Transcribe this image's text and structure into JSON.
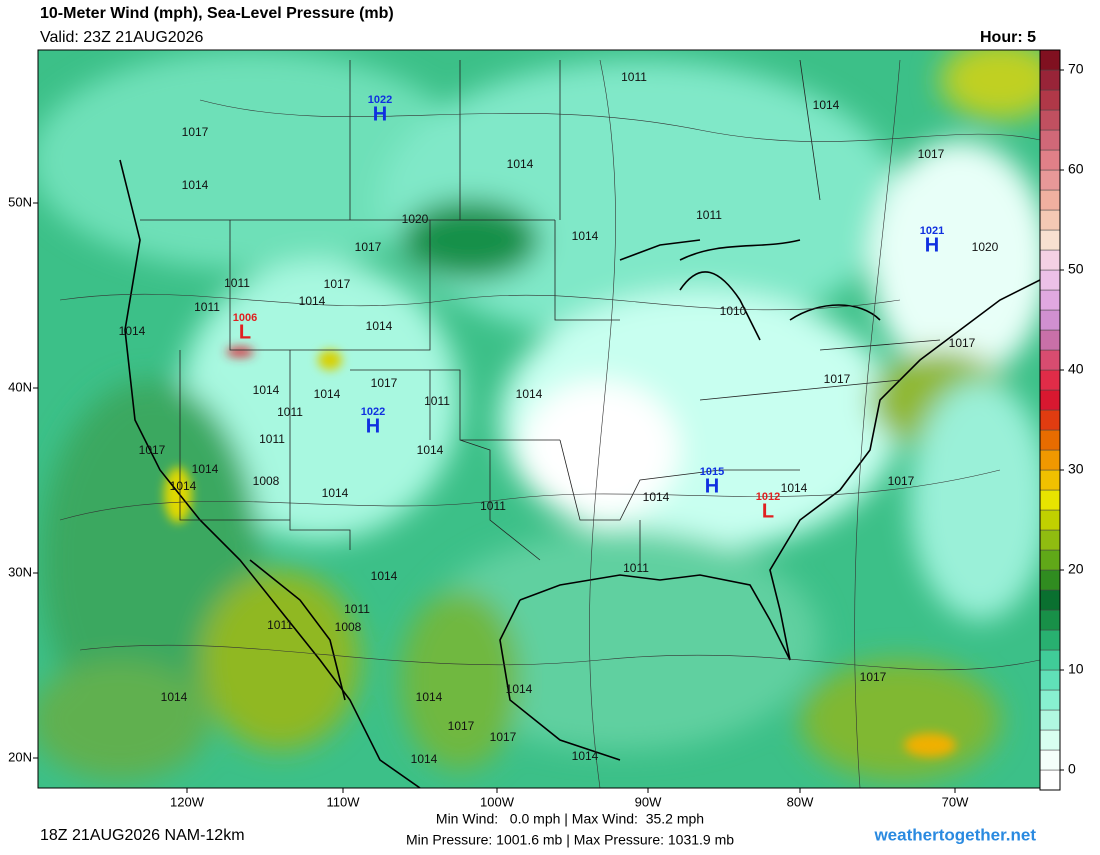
{
  "header": {
    "title": "10-Meter Wind (mph), Sea-Level Pressure (mb)",
    "valid": "Valid: 23Z 21AUG2026",
    "hour": "Hour: 5"
  },
  "map": {
    "lat_labels": [
      "50N",
      "40N",
      "30N",
      "20N"
    ],
    "lon_labels": [
      "120W",
      "110W",
      "100W",
      "90W",
      "80W",
      "70W"
    ],
    "pressure_labels": [
      "1011",
      "1014",
      "1017",
      "1017",
      "1014",
      "1014",
      "1011",
      "1020",
      "1014",
      "1017",
      "1020",
      "1011",
      "1017",
      "1014",
      "1011",
      "1010",
      "1014",
      "1014",
      "1017",
      "1017",
      "1017",
      "1014",
      "1011",
      "1014",
      "1014",
      "1011",
      "1011",
      "1014",
      "1017",
      "1014",
      "1014",
      "1008",
      "1014",
      "1014",
      "1014",
      "1017",
      "1011",
      "1014",
      "1011",
      "1011",
      "1008",
      "1011",
      "1014",
      "1014",
      "1014",
      "1017",
      "1017",
      "1014",
      "1014",
      "1017"
    ],
    "centers": [
      {
        "type": "H",
        "value": "1022"
      },
      {
        "type": "L",
        "value": "1006"
      },
      {
        "type": "H",
        "value": "1022"
      },
      {
        "type": "H",
        "value": "1021"
      },
      {
        "type": "H",
        "value": "1015"
      },
      {
        "type": "L",
        "value": "1012"
      }
    ]
  },
  "colorbar": {
    "ticks": [
      0,
      10,
      20,
      30,
      40,
      50,
      60,
      70
    ],
    "bins": [
      -2,
      0,
      2,
      4,
      6,
      8,
      10,
      12,
      14,
      16,
      18,
      20,
      22,
      24,
      26,
      28,
      30,
      32,
      34,
      36,
      38,
      40,
      42,
      44,
      46,
      48,
      50,
      52,
      54,
      56,
      58,
      60,
      62,
      64,
      66,
      68,
      70,
      72
    ],
    "colors": [
      "#ffffff",
      "#f4fffa",
      "#d8fff0",
      "#b0f8e0",
      "#88f0d0",
      "#60e0b8",
      "#40cc98",
      "#28b070",
      "#189048",
      "#0a7030",
      "#308c20",
      "#60a818",
      "#90bc10",
      "#c0d000",
      "#e8e400",
      "#f0c000",
      "#f09800",
      "#e86c00",
      "#e03c10",
      "#d81830",
      "#e02c48",
      "#d84c70",
      "#c870a8",
      "#d090d0",
      "#e0a8e0",
      "#ecc0e8",
      "#f4d0e4",
      "#f8e0d0",
      "#f4c8b4",
      "#f0b0a0",
      "#e89898",
      "#e08088",
      "#d06878",
      "#c05060",
      "#b03848",
      "#982438",
      "#801020"
    ]
  },
  "footer": {
    "run": "18Z 21AUG2026 NAM-12km",
    "stats": [
      "Min Wind:   0.0 mph | Max Wind:  35.2 mph",
      "Min Pressure: 1001.6 mb | Max Pressure: 1031.9 mb"
    ],
    "site": "weathertogether.net"
  }
}
